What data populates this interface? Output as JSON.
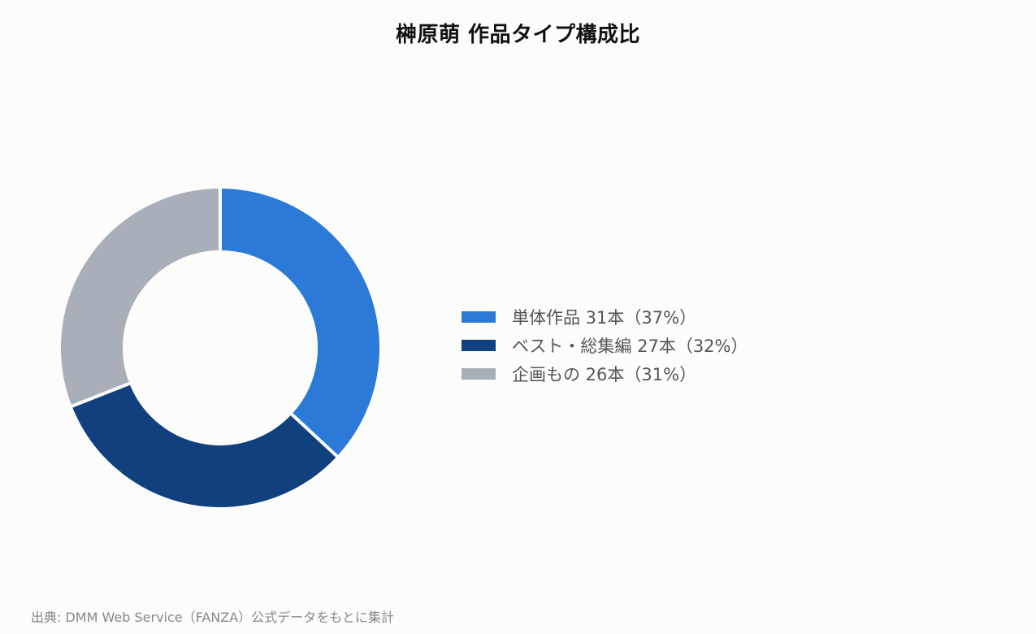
{
  "chart_data": {
    "type": "pie",
    "title": "榊原萌 作品タイプ構成比",
    "donut": true,
    "legend_position": "right",
    "slices": [
      {
        "name": "単体作品",
        "value": 31,
        "percent": 37,
        "label": "単体作品 31本（37%）",
        "color": "#2b7ad8"
      },
      {
        "name": "ベスト・総集編",
        "value": 27,
        "percent": 32,
        "label": "ベスト・総集編 27本（32%）",
        "color": "#11407e"
      },
      {
        "name": "企画もの",
        "value": 26,
        "percent": 31,
        "label": "企画もの 26本（31%）",
        "color": "#a8afb9"
      }
    ]
  },
  "source_note": "出典: DMM Web Service（FANZA）公式データをもとに集計"
}
